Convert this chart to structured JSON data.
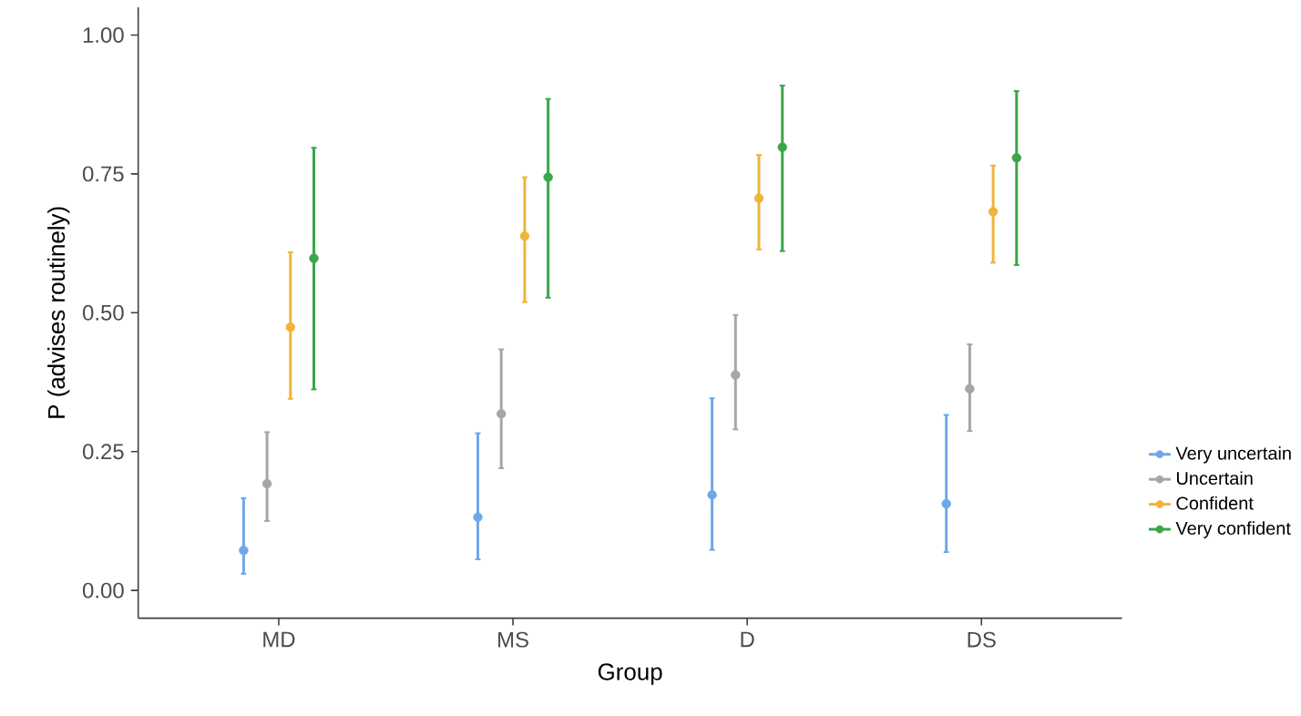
{
  "chart_data": {
    "type": "scatter",
    "xlabel": "Group",
    "ylabel": "P (advises routinely)",
    "categories": [
      "MD",
      "MS",
      "D",
      "DS"
    ],
    "ylim": [
      -0.05,
      1.05
    ],
    "yticks": [
      {
        "value": 0,
        "label": "0.00"
      },
      {
        "value": 0.25,
        "label": "0.25"
      },
      {
        "value": 0.5,
        "label": "0.50"
      },
      {
        "value": 0.75,
        "label": "0.75"
      },
      {
        "value": 1,
        "label": "1.00"
      }
    ],
    "grid": false,
    "legend": "right",
    "marker": "circle",
    "series": [
      {
        "name": "Very uncertain",
        "color": "#6fa8e8",
        "values": [
          0.072,
          0.132,
          0.172,
          0.156
        ],
        "errors": [
          [
            0.03,
            0.166
          ],
          [
            0.056,
            0.283
          ],
          [
            0.073,
            0.346
          ],
          [
            0.069,
            0.316
          ]
        ]
      },
      {
        "name": "Uncertain",
        "color": "#a6a6a6",
        "values": [
          0.192,
          0.318,
          0.388,
          0.363
        ],
        "errors": [
          [
            0.125,
            0.285
          ],
          [
            0.22,
            0.434
          ],
          [
            0.29,
            0.496
          ],
          [
            0.287,
            0.443
          ]
        ]
      },
      {
        "name": "Confident",
        "color": "#f0b43c",
        "values": [
          0.474,
          0.638,
          0.706,
          0.682
        ],
        "errors": [
          [
            0.345,
            0.609
          ],
          [
            0.519,
            0.744
          ],
          [
            0.614,
            0.784
          ],
          [
            0.59,
            0.765
          ]
        ]
      },
      {
        "name": "Very confident",
        "color": "#3aa64a",
        "values": [
          0.598,
          0.744,
          0.798,
          0.779
        ],
        "errors": [
          [
            0.362,
            0.797
          ],
          [
            0.527,
            0.885
          ],
          [
            0.611,
            0.909
          ],
          [
            0.586,
            0.899
          ]
        ]
      }
    ]
  }
}
